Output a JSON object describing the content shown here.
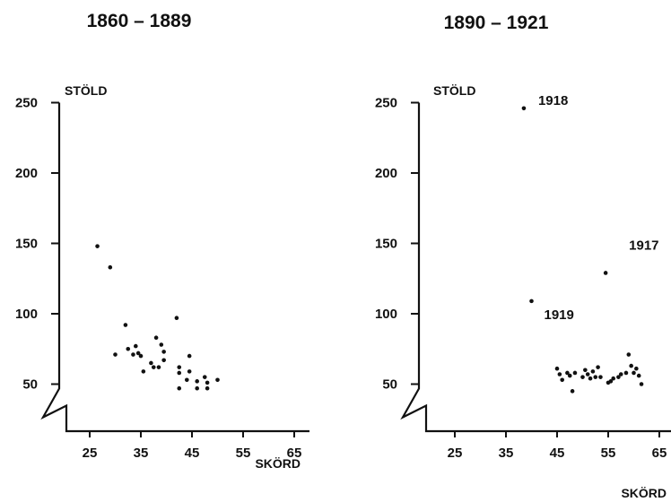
{
  "chart_data": [
    {
      "type": "scatter",
      "title": "1860 – 1889",
      "xlabel": "SKÖRD",
      "ylabel": "STÖLD",
      "xticks": [
        "25",
        "35",
        "45",
        "55",
        "65"
      ],
      "yticks": [
        "50",
        "100",
        "150",
        "200",
        "250"
      ],
      "xlim": [
        18,
        65
      ],
      "ylim": [
        30,
        250
      ],
      "y_axis_break": true,
      "grid": false,
      "points": [
        {
          "x": 26.5,
          "y": 148
        },
        {
          "x": 29,
          "y": 133
        },
        {
          "x": 32,
          "y": 92
        },
        {
          "x": 30,
          "y": 71
        },
        {
          "x": 32.5,
          "y": 75
        },
        {
          "x": 33.5,
          "y": 71
        },
        {
          "x": 34,
          "y": 77
        },
        {
          "x": 34.5,
          "y": 72
        },
        {
          "x": 35,
          "y": 70
        },
        {
          "x": 35.5,
          "y": 59
        },
        {
          "x": 37,
          "y": 65
        },
        {
          "x": 37.5,
          "y": 62
        },
        {
          "x": 38,
          "y": 83
        },
        {
          "x": 38.5,
          "y": 62
        },
        {
          "x": 39,
          "y": 78
        },
        {
          "x": 39.5,
          "y": 73
        },
        {
          "x": 39.5,
          "y": 67
        },
        {
          "x": 42,
          "y": 97
        },
        {
          "x": 42.5,
          "y": 62
        },
        {
          "x": 42.5,
          "y": 58
        },
        {
          "x": 42.5,
          "y": 47
        },
        {
          "x": 44,
          "y": 53
        },
        {
          "x": 44.5,
          "y": 70
        },
        {
          "x": 44.5,
          "y": 59
        },
        {
          "x": 46,
          "y": 52
        },
        {
          "x": 46,
          "y": 47
        },
        {
          "x": 47.5,
          "y": 55
        },
        {
          "x": 48,
          "y": 51
        },
        {
          "x": 48,
          "y": 47
        },
        {
          "x": 50,
          "y": 53
        }
      ],
      "annotations": []
    },
    {
      "type": "scatter",
      "title": "1890 – 1921",
      "xlabel": "SKÖRD",
      "ylabel": "STÖLD",
      "xticks": [
        "25",
        "35",
        "45",
        "55",
        "65"
      ],
      "yticks": [
        "50",
        "100",
        "150",
        "200",
        "250"
      ],
      "xlim": [
        18,
        65
      ],
      "ylim": [
        30,
        250
      ],
      "y_axis_break": true,
      "grid": false,
      "points": [
        {
          "x": 38.5,
          "y": 246
        },
        {
          "x": 54.5,
          "y": 129
        },
        {
          "x": 40,
          "y": 109
        },
        {
          "x": 45,
          "y": 61
        },
        {
          "x": 45.5,
          "y": 57
        },
        {
          "x": 46,
          "y": 53
        },
        {
          "x": 47,
          "y": 58
        },
        {
          "x": 47.5,
          "y": 56
        },
        {
          "x": 48,
          "y": 45
        },
        {
          "x": 48.5,
          "y": 58
        },
        {
          "x": 50,
          "y": 55
        },
        {
          "x": 50.5,
          "y": 60
        },
        {
          "x": 51,
          "y": 57
        },
        {
          "x": 51.5,
          "y": 54
        },
        {
          "x": 52,
          "y": 59
        },
        {
          "x": 52.5,
          "y": 55
        },
        {
          "x": 53,
          "y": 62
        },
        {
          "x": 53.5,
          "y": 55
        },
        {
          "x": 55.5,
          "y": 52
        },
        {
          "x": 56,
          "y": 54
        },
        {
          "x": 57,
          "y": 55
        },
        {
          "x": 57.5,
          "y": 57
        },
        {
          "x": 58.5,
          "y": 58
        },
        {
          "x": 59,
          "y": 71
        },
        {
          "x": 59.5,
          "y": 63
        },
        {
          "x": 60,
          "y": 58
        },
        {
          "x": 60.5,
          "y": 61
        },
        {
          "x": 61,
          "y": 56
        },
        {
          "x": 61.5,
          "y": 50
        },
        {
          "x": 55,
          "y": 51
        }
      ],
      "annotations": [
        {
          "text": "1918",
          "x": 38.5,
          "y": 246
        },
        {
          "text": "1917",
          "x": 54.5,
          "y": 129
        },
        {
          "text": "1919",
          "x": 40,
          "y": 109
        }
      ]
    }
  ]
}
